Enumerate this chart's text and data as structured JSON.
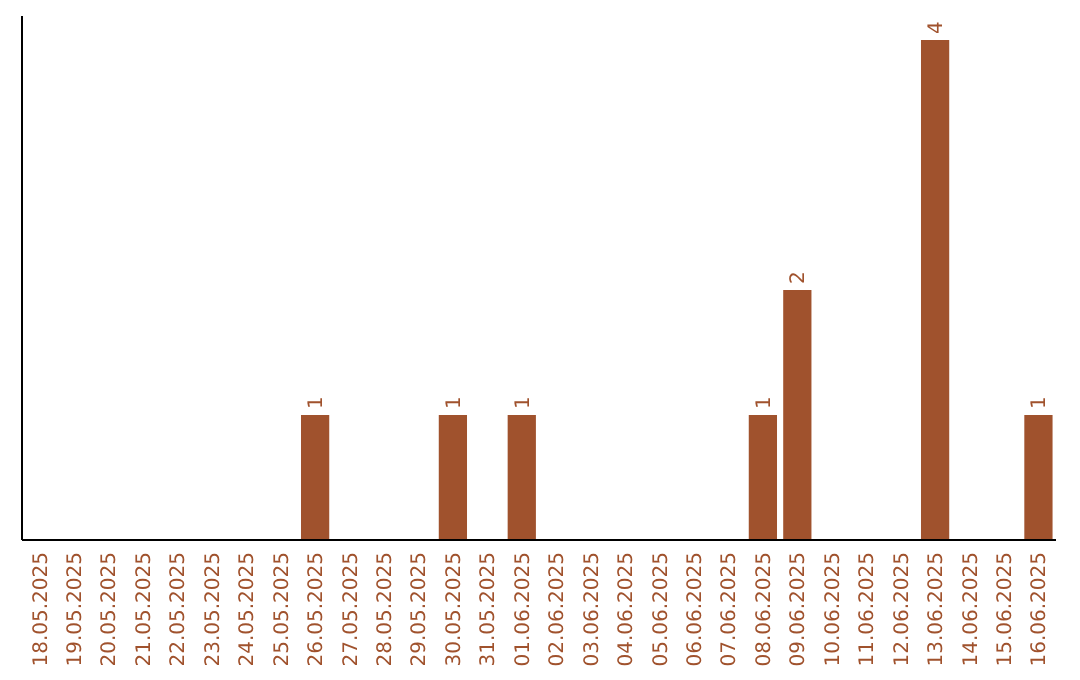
{
  "chart_data": {
    "type": "bar",
    "categories": [
      "18.05.2025",
      "19.05.2025",
      "20.05.2025",
      "21.05.2025",
      "22.05.2025",
      "23.05.2025",
      "24.05.2025",
      "25.05.2025",
      "26.05.2025",
      "27.05.2025",
      "28.05.2025",
      "29.05.2025",
      "30.05.2025",
      "31.05.2025",
      "01.06.2025",
      "02.06.2025",
      "03.06.2025",
      "04.06.2025",
      "05.06.2025",
      "06.06.2025",
      "07.06.2025",
      "08.06.2025",
      "09.06.2025",
      "10.06.2025",
      "11.06.2025",
      "12.06.2025",
      "13.06.2025",
      "14.06.2025",
      "15.06.2025",
      "16.06.2025"
    ],
    "values": [
      0,
      0,
      0,
      0,
      0,
      0,
      0,
      0,
      1,
      0,
      0,
      0,
      1,
      0,
      1,
      0,
      0,
      0,
      0,
      0,
      0,
      1,
      2,
      0,
      0,
      0,
      4,
      0,
      0,
      1
    ],
    "value_labels": [
      null,
      null,
      null,
      null,
      null,
      null,
      null,
      null,
      "1",
      null,
      null,
      null,
      "1",
      null,
      "1",
      null,
      null,
      null,
      null,
      null,
      null,
      "1",
      "2",
      null,
      null,
      null,
      "4",
      null,
      null,
      "1"
    ],
    "color": "#a0522d"
  }
}
